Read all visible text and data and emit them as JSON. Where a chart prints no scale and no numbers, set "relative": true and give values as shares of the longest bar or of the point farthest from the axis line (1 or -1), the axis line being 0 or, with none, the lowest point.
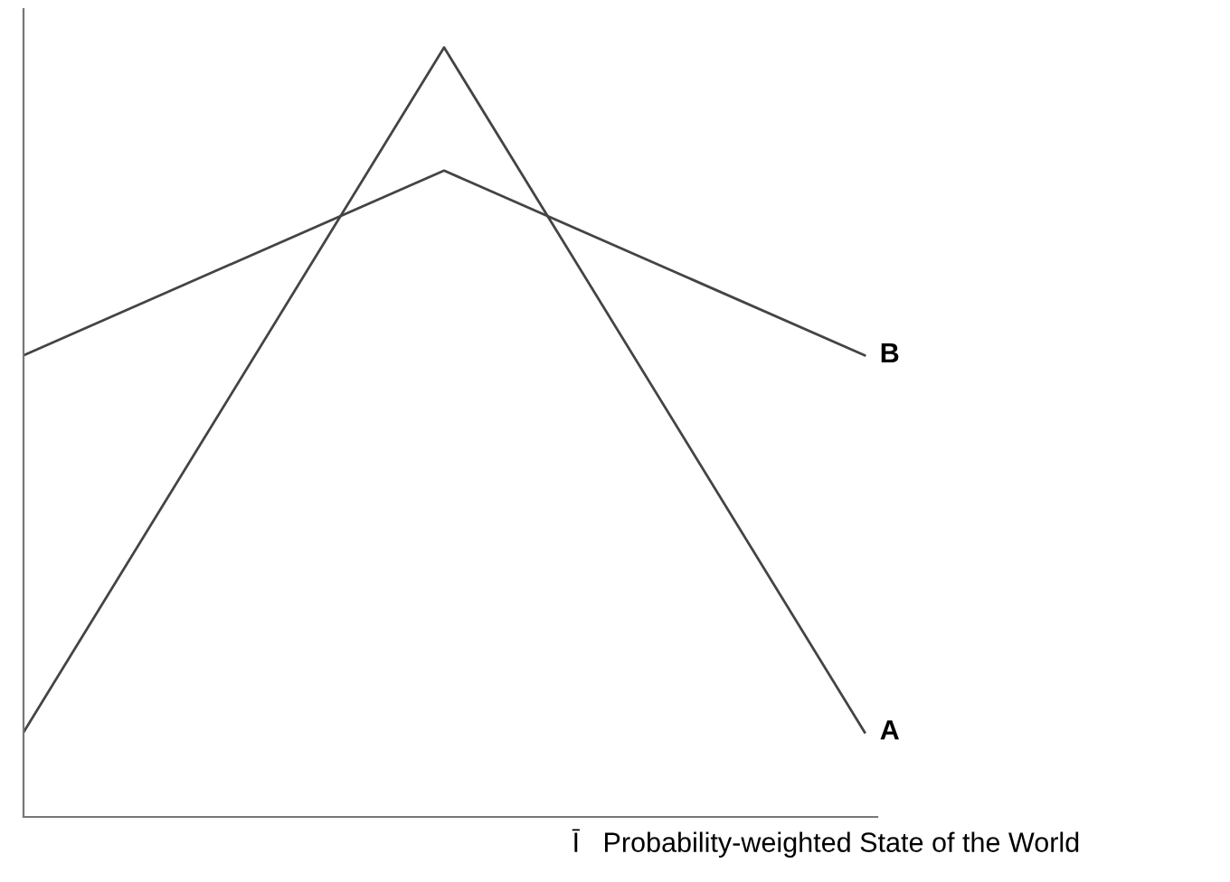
{
  "chart_data": {
    "type": "line",
    "relative": true,
    "xlabel": "Ī   Probability-weighted State of the World",
    "categories": [
      null,
      null,
      null
    ],
    "series": [
      {
        "name": "A",
        "color": "#444444",
        "values": [
          0.11,
          1,
          0.11
        ]
      },
      {
        "name": "B",
        "color": "#444444",
        "values": [
          0.6,
          0.84,
          0.6
        ]
      }
    ],
    "grid": false,
    "legend": false,
    "marker": "none",
    "line_style": "solid"
  }
}
